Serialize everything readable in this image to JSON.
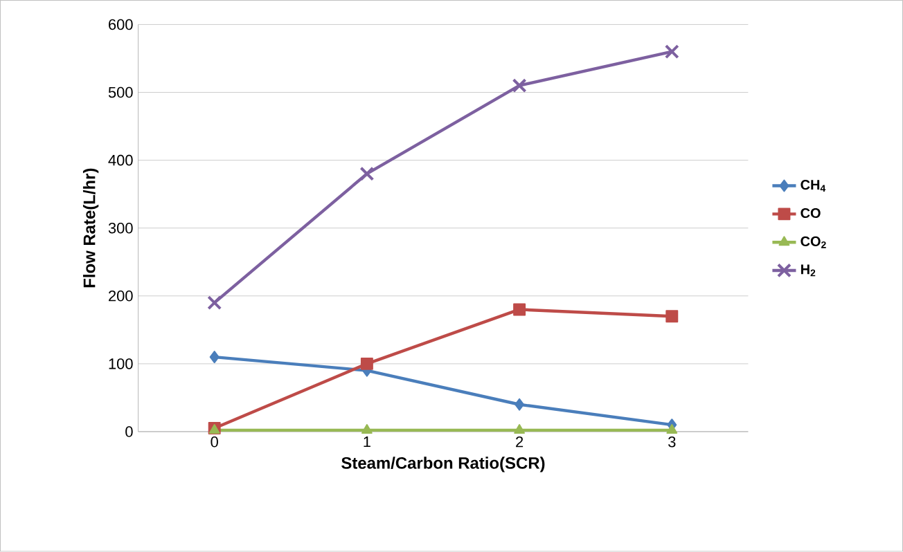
{
  "chart_data": {
    "type": "line",
    "xlabel": "Steam/Carbon Ratio(SCR)",
    "ylabel": "Flow Rate(L/hr)",
    "categories": [
      "0",
      "1",
      "2",
      "3"
    ],
    "series": [
      {
        "name": "CH$_{4}$",
        "color": "#4a7ebb",
        "marker": "diamond",
        "values": [
          110,
          90,
          40,
          10
        ]
      },
      {
        "name": "CO",
        "color": "#be4b48",
        "marker": "square",
        "values": [
          5,
          100,
          180,
          170
        ]
      },
      {
        "name": "CO$_{2}$",
        "color": "#98b954",
        "marker": "triangle",
        "values": [
          2,
          2,
          2,
          2
        ]
      },
      {
        "name": "H$_{2}$",
        "color": "#7d60a0",
        "marker": "cross",
        "values": [
          190,
          380,
          510,
          560
        ]
      }
    ],
    "ylim": [
      0,
      600
    ],
    "yticks": [
      0,
      100,
      200,
      300,
      400,
      500,
      600
    ],
    "grid": "y",
    "legend": "right"
  }
}
